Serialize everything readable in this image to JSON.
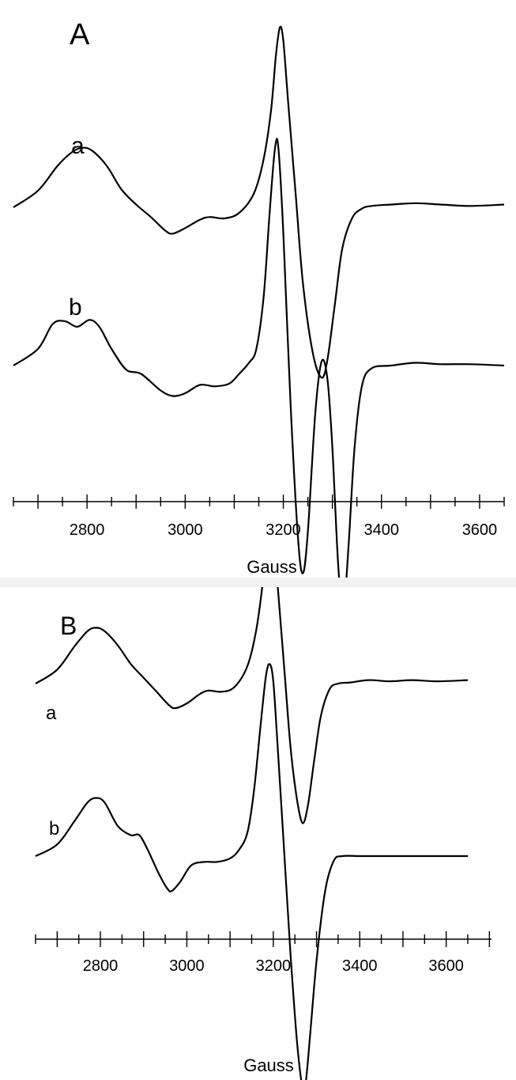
{
  "chart_data": [
    {
      "panel_label": "A",
      "type": "line",
      "xlabel": "Gauss",
      "ylabel": "",
      "xlim": [
        2650,
        3650
      ],
      "xticks": [
        2800,
        3000,
        3200,
        3400,
        3600
      ],
      "grid": false,
      "legend": "none",
      "series": [
        {
          "label": "a",
          "x": [
            2650,
            2700,
            2740,
            2770,
            2790,
            2810,
            2840,
            2870,
            2900,
            2930,
            2960,
            2975,
            3000,
            3030,
            3050,
            3080,
            3110,
            3140,
            3160,
            3175,
            3185,
            3193,
            3200,
            3210,
            3225,
            3240,
            3260,
            3278,
            3290,
            3305,
            3320,
            3340,
            3360,
            3380,
            3420,
            3470,
            3520,
            3580,
            3650
          ],
          "y": [
            0,
            0.12,
            0.3,
            0.4,
            0.43,
            0.41,
            0.3,
            0.13,
            0.02,
            -0.07,
            -0.17,
            -0.19,
            -0.15,
            -0.09,
            -0.07,
            -0.08,
            -0.04,
            0.1,
            0.35,
            0.7,
            1.1,
            1.3,
            1.2,
            0.75,
            0.1,
            -0.55,
            -1.05,
            -1.23,
            -1.1,
            -0.7,
            -0.3,
            -0.08,
            -0.01,
            0.01,
            0.02,
            0.03,
            0.02,
            0.01,
            0.02
          ]
        },
        {
          "label": "b",
          "x": [
            2650,
            2700,
            2730,
            2755,
            2780,
            2805,
            2825,
            2850,
            2880,
            2910,
            2950,
            2975,
            3000,
            3030,
            3060,
            3090,
            3110,
            3130,
            3145,
            3160,
            3172,
            3183,
            3190,
            3200,
            3215,
            3230,
            3240,
            3250,
            3265,
            3278,
            3290,
            3300,
            3312,
            3322,
            3333,
            3345,
            3360,
            3380,
            3420,
            3470,
            3520,
            3580,
            3650
          ],
          "y": [
            0,
            0.12,
            0.3,
            0.32,
            0.28,
            0.33,
            0.28,
            0.12,
            -0.03,
            -0.06,
            -0.18,
            -0.22,
            -0.2,
            -0.14,
            -0.15,
            -0.13,
            -0.06,
            0.02,
            0.12,
            0.5,
            1.1,
            1.57,
            1.57,
            0.95,
            -0.3,
            -1.25,
            -1.5,
            -1.2,
            -0.35,
            0.03,
            -0.1,
            -0.6,
            -1.45,
            -1.77,
            -1.3,
            -0.6,
            -0.15,
            -0.02,
            0.0,
            0.02,
            0.01,
            0.01,
            0.0
          ]
        }
      ]
    },
    {
      "panel_label": "B",
      "type": "line",
      "xlabel": "Gauss",
      "ylabel": "",
      "xlim": [
        2650,
        3650
      ],
      "xticks": [
        2800,
        3000,
        3200,
        3400,
        3600
      ],
      "grid": false,
      "legend": "none",
      "series": [
        {
          "label": "a",
          "x": [
            2650,
            2700,
            2740,
            2770,
            2790,
            2810,
            2840,
            2870,
            2900,
            2930,
            2960,
            2975,
            3000,
            3030,
            3050,
            3080,
            3110,
            3140,
            3160,
            3175,
            3185,
            3193,
            3200,
            3210,
            3225,
            3240,
            3255,
            3268,
            3280,
            3295,
            3310,
            3330,
            3350,
            3380,
            3420,
            3470,
            3520,
            3580,
            3650
          ],
          "y": [
            0,
            0.12,
            0.32,
            0.45,
            0.48,
            0.45,
            0.33,
            0.17,
            0.05,
            -0.07,
            -0.19,
            -0.21,
            -0.17,
            -0.09,
            -0.06,
            -0.07,
            -0.03,
            0.15,
            0.45,
            0.85,
            1.25,
            1.4,
            1.3,
            0.85,
            0.15,
            -0.55,
            -1.0,
            -1.2,
            -1.05,
            -0.65,
            -0.28,
            -0.05,
            0.0,
            0.01,
            0.03,
            0.02,
            0.03,
            0.02,
            0.03
          ]
        },
        {
          "label": "b",
          "x": [
            2650,
            2700,
            2740,
            2770,
            2790,
            2810,
            2840,
            2870,
            2890,
            2910,
            2935,
            2955,
            2965,
            2985,
            3010,
            3040,
            3070,
            3100,
            3120,
            3140,
            3155,
            3170,
            3183,
            3192,
            3200,
            3210,
            3225,
            3240,
            3255,
            3268,
            3275,
            3285,
            3300,
            3320,
            3340,
            3360,
            3400,
            3450,
            3520,
            3580,
            3650
          ],
          "y": [
            0,
            0.1,
            0.3,
            0.46,
            0.5,
            0.46,
            0.26,
            0.18,
            0.18,
            0.05,
            -0.15,
            -0.28,
            -0.3,
            -0.22,
            -0.08,
            -0.05,
            -0.05,
            -0.02,
            0.05,
            0.2,
            0.55,
            1.1,
            1.55,
            1.65,
            1.5,
            0.95,
            0.05,
            -0.85,
            -1.6,
            -2.0,
            -1.95,
            -1.55,
            -0.9,
            -0.3,
            -0.04,
            0.0,
            0.0,
            0.0,
            0.0,
            0.0,
            0.0
          ]
        }
      ]
    }
  ]
}
